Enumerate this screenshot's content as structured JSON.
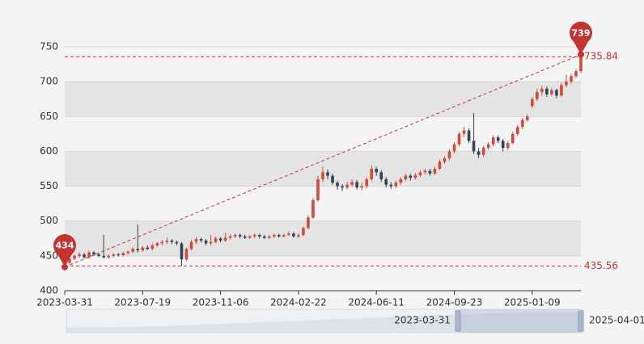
{
  "chart_data": {
    "type": "candlestick",
    "categories": [
      "2023-03-31",
      null,
      null,
      null,
      null,
      null,
      null,
      null,
      null,
      null,
      null,
      null,
      null,
      null,
      null,
      null,
      "2023-07-19",
      null,
      null,
      null,
      null,
      null,
      null,
      null,
      null,
      null,
      null,
      null,
      null,
      null,
      null,
      null,
      "2023-11-06",
      null,
      null,
      null,
      null,
      null,
      null,
      null,
      null,
      null,
      null,
      null,
      null,
      null,
      null,
      null,
      "2024-02-22",
      null,
      null,
      null,
      null,
      null,
      null,
      null,
      null,
      null,
      null,
      null,
      null,
      null,
      null,
      null,
      "2024-06-11",
      null,
      null,
      null,
      null,
      null,
      null,
      null,
      null,
      null,
      null,
      null,
      null,
      null,
      null,
      null,
      "2024-09-23",
      null,
      null,
      null,
      null,
      null,
      null,
      null,
      null,
      null,
      null,
      null,
      null,
      null,
      null,
      null,
      "2025-01-09",
      null,
      null,
      null,
      null,
      null,
      null,
      null,
      null,
      null,
      null
    ],
    "series": [
      {
        "up_color": "#d14a3b",
        "down_color": "#2f4554",
        "values": [
          [
            438,
            440,
            434,
            443
          ],
          [
            440,
            446,
            438,
            448
          ],
          [
            446,
            450,
            444,
            452
          ],
          [
            450,
            452,
            447,
            455
          ],
          [
            452,
            448,
            446,
            454
          ],
          [
            448,
            455,
            446,
            457
          ],
          [
            455,
            452,
            450,
            457
          ],
          [
            452,
            450,
            448,
            454
          ],
          [
            450,
            448,
            446,
            480
          ],
          [
            448,
            450,
            446,
            452
          ],
          [
            450,
            452,
            448,
            454
          ],
          [
            452,
            451,
            449,
            454
          ],
          [
            451,
            454,
            449,
            456
          ],
          [
            454,
            456,
            452,
            458
          ],
          [
            456,
            460,
            454,
            462
          ],
          [
            460,
            458,
            455,
            495
          ],
          [
            458,
            462,
            456,
            464
          ],
          [
            462,
            460,
            458,
            465
          ],
          [
            460,
            465,
            458,
            468
          ],
          [
            465,
            468,
            463,
            470
          ],
          [
            468,
            470,
            465,
            473
          ],
          [
            470,
            472,
            467,
            476
          ],
          [
            472,
            470,
            467,
            474
          ],
          [
            470,
            468,
            465,
            472
          ],
          [
            468,
            445,
            436,
            470
          ],
          [
            445,
            460,
            443,
            462
          ],
          [
            460,
            470,
            458,
            473
          ],
          [
            470,
            474,
            467,
            477
          ],
          [
            474,
            472,
            469,
            476
          ],
          [
            472,
            468,
            465,
            474
          ],
          [
            468,
            470,
            465,
            480
          ],
          [
            470,
            475,
            468,
            478
          ],
          [
            475,
            472,
            469,
            477
          ],
          [
            472,
            476,
            470,
            483
          ],
          [
            476,
            478,
            473,
            481
          ],
          [
            478,
            480,
            476,
            482
          ],
          [
            480,
            478,
            475,
            482
          ],
          [
            478,
            476,
            474,
            480
          ],
          [
            476,
            478,
            474,
            480
          ],
          [
            478,
            480,
            476,
            482
          ],
          [
            480,
            478,
            475,
            482
          ],
          [
            478,
            476,
            474,
            480
          ],
          [
            476,
            478,
            474,
            480
          ],
          [
            478,
            480,
            476,
            482
          ],
          [
            480,
            478,
            476,
            482
          ],
          [
            478,
            480,
            476,
            482
          ],
          [
            480,
            482,
            478,
            485
          ],
          [
            482,
            478,
            476,
            484
          ],
          [
            478,
            480,
            476,
            482
          ],
          [
            480,
            490,
            478,
            492
          ],
          [
            490,
            505,
            488,
            508
          ],
          [
            505,
            530,
            503,
            533
          ],
          [
            530,
            560,
            528,
            565
          ],
          [
            560,
            570,
            556,
            578
          ],
          [
            570,
            565,
            560,
            574
          ],
          [
            565,
            555,
            552,
            568
          ],
          [
            555,
            550,
            545,
            558
          ],
          [
            550,
            548,
            543,
            553
          ],
          [
            548,
            552,
            545,
            556
          ],
          [
            552,
            556,
            549,
            560
          ],
          [
            556,
            548,
            545,
            559
          ],
          [
            548,
            550,
            544,
            555
          ],
          [
            550,
            560,
            547,
            563
          ],
          [
            560,
            575,
            557,
            580
          ],
          [
            575,
            570,
            565,
            578
          ],
          [
            570,
            560,
            556,
            573
          ],
          [
            560,
            552,
            548,
            563
          ],
          [
            552,
            550,
            546,
            556
          ],
          [
            550,
            555,
            547,
            558
          ],
          [
            555,
            560,
            552,
            563
          ],
          [
            560,
            565,
            557,
            568
          ],
          [
            565,
            562,
            558,
            568
          ],
          [
            562,
            566,
            559,
            569
          ],
          [
            566,
            570,
            563,
            573
          ],
          [
            570,
            572,
            567,
            575
          ],
          [
            572,
            568,
            565,
            575
          ],
          [
            568,
            575,
            566,
            578
          ],
          [
            575,
            585,
            573,
            588
          ],
          [
            585,
            590,
            582,
            593
          ],
          [
            590,
            600,
            587,
            603
          ],
          [
            600,
            610,
            597,
            613
          ],
          [
            610,
            625,
            607,
            628
          ],
          [
            625,
            630,
            620,
            635
          ],
          [
            630,
            615,
            612,
            633
          ],
          [
            615,
            600,
            596,
            655
          ],
          [
            600,
            595,
            590,
            605
          ],
          [
            595,
            605,
            592,
            608
          ],
          [
            605,
            610,
            602,
            613
          ],
          [
            610,
            620,
            607,
            623
          ],
          [
            620,
            615,
            612,
            623
          ],
          [
            615,
            605,
            600,
            618
          ],
          [
            605,
            612,
            602,
            615
          ],
          [
            612,
            625,
            610,
            628
          ],
          [
            625,
            635,
            622,
            638
          ],
          [
            635,
            645,
            632,
            648
          ],
          [
            645,
            650,
            642,
            653
          ],
          [
            665,
            675,
            662,
            678
          ],
          [
            675,
            685,
            672,
            690
          ],
          [
            685,
            690,
            680,
            694
          ],
          [
            690,
            682,
            678,
            693
          ],
          [
            682,
            688,
            679,
            691
          ],
          [
            688,
            680,
            676,
            690
          ],
          [
            680,
            695,
            678,
            698
          ],
          [
            695,
            700,
            692,
            710
          ],
          [
            700,
            708,
            697,
            711
          ],
          [
            708,
            715,
            705,
            718
          ],
          [
            715,
            735.84,
            712,
            739
          ]
        ]
      }
    ],
    "ylim": [
      400,
      750
    ],
    "yticks": [
      400,
      450,
      500,
      550,
      600,
      650,
      700,
      750
    ],
    "split_area": true,
    "mark_color": "#c23531",
    "mark_points": [
      434,
      739
    ],
    "mark_lines": [
      435.56,
      735.84
    ],
    "data_zoom": {
      "start_label": "2023-03-31",
      "end_label": "2025-04-01"
    }
  }
}
